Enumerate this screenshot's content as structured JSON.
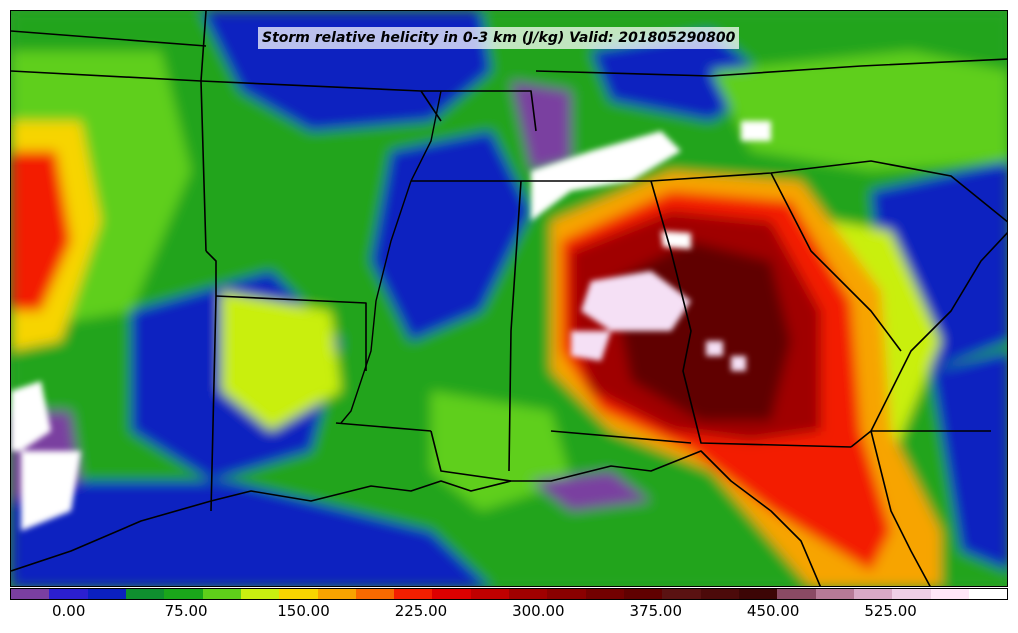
{
  "title": "Storm relative helicity in 0-3 km (J/kg) Valid: 201805290800",
  "colorbar": {
    "colors": [
      "#7a3fa0",
      "#2b1fd0",
      "#0b20c0",
      "#0f8f2f",
      "#1aa61a",
      "#5fcf1a",
      "#c9ef10",
      "#f7d400",
      "#f7a400",
      "#f76a00",
      "#f31f00",
      "#dd0000",
      "#c00000",
      "#a00000",
      "#8a0000",
      "#730000",
      "#600000",
      "#5a1212",
      "#4c0a0a",
      "#3c0505",
      "#8a4a64",
      "#b77a97",
      "#d9a9c6",
      "#efcfe6",
      "#ffe6f8",
      "#ffffff"
    ],
    "tick_labels": [
      "0.00",
      "75.00",
      "150.00",
      "225.00",
      "300.00",
      "375.00",
      "450.00",
      "525.00"
    ],
    "tick_values": [
      0,
      75,
      150,
      225,
      300,
      375,
      450,
      525
    ],
    "range": [
      -37.5,
      600
    ]
  },
  "map_region": "southeastern United States"
}
